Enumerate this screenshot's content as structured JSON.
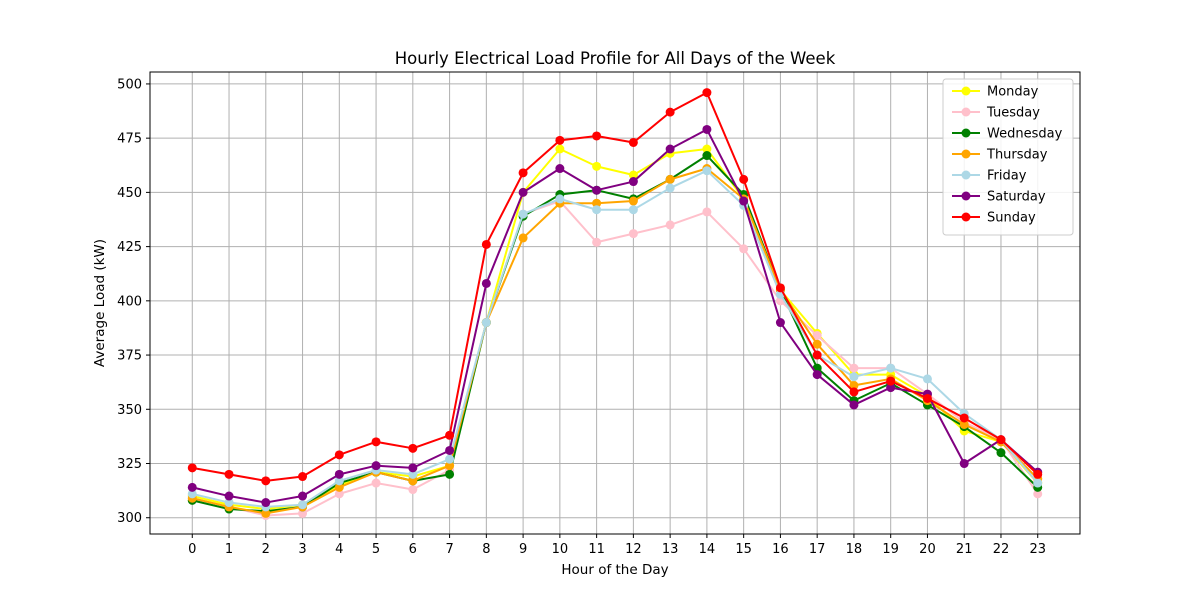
{
  "chart_data": {
    "type": "line",
    "title": "Hourly Electrical Load Profile for All Days of the Week",
    "xlabel": "Hour of the Day",
    "ylabel": "Average Load (kW)",
    "xlim": [
      -1.15,
      24.15
    ],
    "ylim": [
      292.5,
      505.5
    ],
    "x_ticks": [
      "0",
      "1",
      "2",
      "3",
      "4",
      "5",
      "6",
      "7",
      "8",
      "9",
      "10",
      "11",
      "12",
      "13",
      "14",
      "15",
      "16",
      "17",
      "18",
      "19",
      "20",
      "21",
      "22",
      "23"
    ],
    "y_ticks": [
      "300",
      "325",
      "350",
      "375",
      "400",
      "425",
      "450",
      "475",
      "500"
    ],
    "grid": true,
    "legend_position": "top-right",
    "x": [
      0,
      1,
      2,
      3,
      4,
      5,
      6,
      7,
      8,
      9,
      10,
      11,
      12,
      13,
      14,
      15,
      16,
      17,
      18,
      19,
      20,
      21,
      22,
      23
    ],
    "series": [
      {
        "name": "Monday",
        "color": "#ffff00",
        "values": [
          310,
          306,
          304,
          306,
          315,
          321,
          319,
          324,
          390,
          450,
          470,
          462,
          458,
          468,
          470,
          447,
          405,
          385,
          366,
          366,
          356,
          340,
          335,
          316
        ]
      },
      {
        "name": "Tuesday",
        "color": "#ffc0cb",
        "values": [
          308,
          305,
          301,
          302,
          311,
          316,
          313,
          322,
          390,
          440,
          446,
          427,
          431,
          435,
          441,
          424,
          400,
          384,
          369,
          369,
          357,
          344,
          336,
          311
        ]
      },
      {
        "name": "Wednesday",
        "color": "#008000",
        "values": [
          308,
          304,
          303,
          305,
          316,
          321,
          317,
          320,
          390,
          439,
          449,
          451,
          447,
          456,
          467,
          449,
          405,
          369,
          354,
          362,
          352,
          342,
          330,
          314
        ]
      },
      {
        "name": "Thursday",
        "color": "#ffa500",
        "values": [
          309,
          305,
          302,
          305,
          314,
          321,
          317,
          324,
          390,
          429,
          445,
          445,
          446,
          456,
          461,
          447,
          405,
          380,
          361,
          364,
          354,
          343,
          335,
          318
        ]
      },
      {
        "name": "Friday",
        "color": "#add8e6",
        "values": [
          311,
          307,
          305,
          306,
          317,
          322,
          320,
          327,
          390,
          440,
          447,
          442,
          442,
          452,
          460,
          444,
          403,
          375,
          365,
          369,
          364,
          348,
          336,
          316
        ]
      },
      {
        "name": "Saturday",
        "color": "#800080",
        "values": [
          314,
          310,
          307,
          310,
          320,
          324,
          323,
          331,
          408,
          450,
          461,
          451,
          455,
          470,
          479,
          446,
          390,
          366,
          352,
          360,
          357,
          325,
          336,
          321
        ]
      },
      {
        "name": "Sunday",
        "color": "#ff0000",
        "values": [
          323,
          320,
          317,
          319,
          329,
          335,
          332,
          338,
          426,
          459,
          474,
          476,
          473,
          487,
          496,
          456,
          406,
          375,
          358,
          363,
          355,
          346,
          336,
          320
        ]
      }
    ]
  }
}
